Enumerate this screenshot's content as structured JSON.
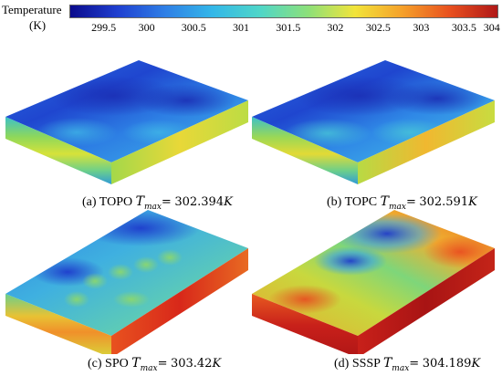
{
  "colorbar": {
    "title": "Temperature",
    "unit": "(K)",
    "ticks": [
      "299.5",
      "300",
      "300.5",
      "301",
      "301.5",
      "302",
      "302.5",
      "303",
      "303.5",
      "304"
    ],
    "colors": [
      "#0a0a8c",
      "#1f3fd0",
      "#2f7fe6",
      "#33b7e8",
      "#4fd6c8",
      "#8ce07a",
      "#f2e43a",
      "#f5a02a",
      "#e8501f",
      "#b01818"
    ]
  },
  "panels": [
    {
      "label": "(a) TOPO",
      "tmax_symbol": "T",
      "tmax_sub": "max",
      "eq": "=",
      "value": "302.394",
      "unit": "K"
    },
    {
      "label": "(b) TOPC",
      "tmax_symbol": "T",
      "tmax_sub": "max",
      "eq": "=",
      "value": "302.591",
      "unit": "K"
    },
    {
      "label": "(c) SPO",
      "tmax_symbol": "T",
      "tmax_sub": "max",
      "eq": "=",
      "value": "303.42",
      "unit": "K"
    },
    {
      "label": "(d) SSSP",
      "tmax_symbol": "T",
      "tmax_sub": "max",
      "eq": "=",
      "value": "304.189",
      "unit": "K"
    }
  ]
}
